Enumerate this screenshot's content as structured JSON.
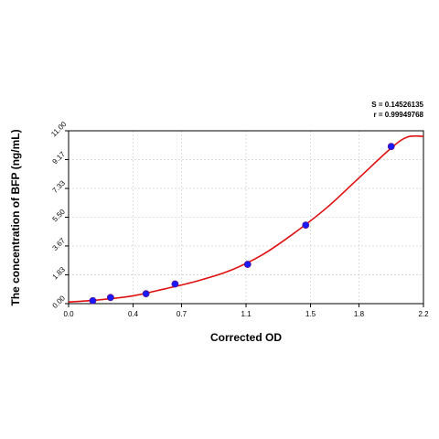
{
  "chart_data": {
    "type": "scatter",
    "title": "",
    "xlabel": "Corrected OD",
    "ylabel": "The concentration of BFP (ng/mL)",
    "xlim": [
      0.0,
      2.2
    ],
    "ylim": [
      0.0,
      11.0
    ],
    "x_ticks": [
      "0.0",
      "0.4",
      "0.7",
      "1.1",
      "1.5",
      "1.8",
      "2.2"
    ],
    "y_ticks": [
      "0.00",
      "1.83",
      "3.67",
      "5.50",
      "7.33",
      "9.17",
      "11.00"
    ],
    "grid": true,
    "points": {
      "x": [
        0.15,
        0.26,
        0.48,
        0.66,
        1.11,
        1.47,
        2.0
      ],
      "y": [
        0.19,
        0.39,
        0.63,
        1.25,
        2.5,
        5.0,
        10.0
      ]
    },
    "fit_curve": {
      "x": [
        0.0,
        0.2,
        0.4,
        0.6,
        0.8,
        1.0,
        1.2,
        1.4,
        1.6,
        1.8,
        2.0,
        2.1,
        2.2
      ],
      "y": [
        0.1,
        0.25,
        0.5,
        0.95,
        1.45,
        2.1,
        3.1,
        4.5,
        6.1,
        8.0,
        9.9,
        10.6,
        10.65
      ]
    },
    "series_color": "#1a1aff",
    "curve_color": "#e01010",
    "stats": {
      "s": "S = 0.14526135",
      "r": "r = 0.99949768"
    }
  }
}
